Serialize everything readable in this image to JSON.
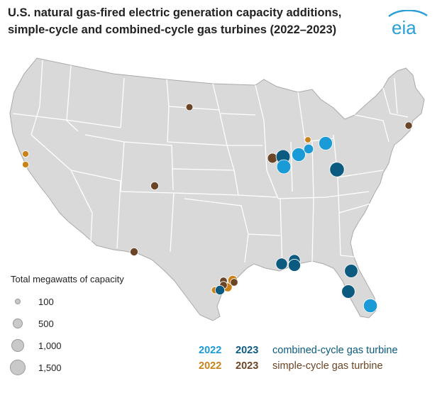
{
  "title": {
    "line1": "U.S. natural gas-fired electric generation capacity additions,",
    "line2": "simple-cycle and combined-cycle gas turbines (2022–2023)"
  },
  "logo": {
    "text": "eia",
    "color": "#2a9fd8"
  },
  "colors": {
    "combined_2022": "#1a9ad6",
    "combined_2023": "#0b5a80",
    "simple_2022": "#c9821a",
    "simple_2023": "#6b4526",
    "state_fill": "#d9d9d9",
    "state_border": "#ffffff"
  },
  "size_legend": {
    "heading": "Total megawatts of capacity",
    "items": [
      {
        "label": "100",
        "mw": 100
      },
      {
        "label": "500",
        "mw": 500
      },
      {
        "label": "1,000",
        "mw": 1000
      },
      {
        "label": "1,500",
        "mw": 1500
      }
    ]
  },
  "type_legend": [
    {
      "y2022": "2022",
      "y2023": "2023",
      "name": "combined-cycle gas turbine",
      "c2022": "#1a9ad6",
      "c2023": "#0b5a80"
    },
    {
      "y2022": "2022",
      "y2023": "2023",
      "name": "simple-cycle gas turbine",
      "c2022": "#c9821a",
      "c2023": "#6b4526"
    }
  ],
  "plants": [
    {
      "state": "CA",
      "type": "simple",
      "year": 2022,
      "mw": 120
    },
    {
      "state": "CA",
      "type": "simple",
      "year": 2022,
      "mw": 120
    },
    {
      "state": "ND",
      "type": "simple",
      "year": 2023,
      "mw": 160
    },
    {
      "state": "CO",
      "type": "simple",
      "year": 2023,
      "mw": 240
    },
    {
      "state": "NM",
      "type": "simple",
      "year": 2023,
      "mw": 240
    },
    {
      "state": "IL",
      "type": "simple",
      "year": 2023,
      "mw": 460
    },
    {
      "state": "IL",
      "type": "combined",
      "year": 2023,
      "mw": 1150
    },
    {
      "state": "IL",
      "type": "combined",
      "year": 2022,
      "mw": 1150
    },
    {
      "state": "IN",
      "type": "combined",
      "year": 2022,
      "mw": 1050
    },
    {
      "state": "MI",
      "type": "simple",
      "year": 2022,
      "mw": 100
    },
    {
      "state": "MI",
      "type": "combined",
      "year": 2022,
      "mw": 420
    },
    {
      "state": "OH",
      "type": "combined",
      "year": 2022,
      "mw": 1050
    },
    {
      "state": "OH",
      "type": "combined",
      "year": 2022,
      "mw": 470
    },
    {
      "state": "OH",
      "type": "combined",
      "year": 2023,
      "mw": 1250
    },
    {
      "state": "MA",
      "type": "simple",
      "year": 2023,
      "mw": 180
    },
    {
      "state": "LA",
      "type": "combined",
      "year": 2023,
      "mw": 700
    },
    {
      "state": "MS",
      "type": "combined",
      "year": 2023,
      "mw": 700
    },
    {
      "state": "MS",
      "type": "combined",
      "year": 2023,
      "mw": 800
    },
    {
      "state": "FL",
      "type": "combined",
      "year": 2023,
      "mw": 1000
    },
    {
      "state": "FL",
      "type": "combined",
      "year": 2023,
      "mw": 1000
    },
    {
      "state": "FL",
      "type": "combined",
      "year": 2022,
      "mw": 1100
    },
    {
      "state": "TX",
      "type": "simple",
      "year": 2022,
      "mw": 320
    },
    {
      "state": "TX",
      "type": "simple",
      "year": 2022,
      "mw": 400
    },
    {
      "state": "TX",
      "type": "simple",
      "year": 2023,
      "mw": 200
    },
    {
      "state": "TX",
      "type": "simple",
      "year": 2023,
      "mw": 200
    },
    {
      "state": "TX",
      "type": "simple",
      "year": 2023,
      "mw": 200
    },
    {
      "state": "TX",
      "type": "simple",
      "year": 2022,
      "mw": 160
    },
    {
      "state": "TX",
      "type": "combined",
      "year": 2023,
      "mw": 400
    }
  ]
}
